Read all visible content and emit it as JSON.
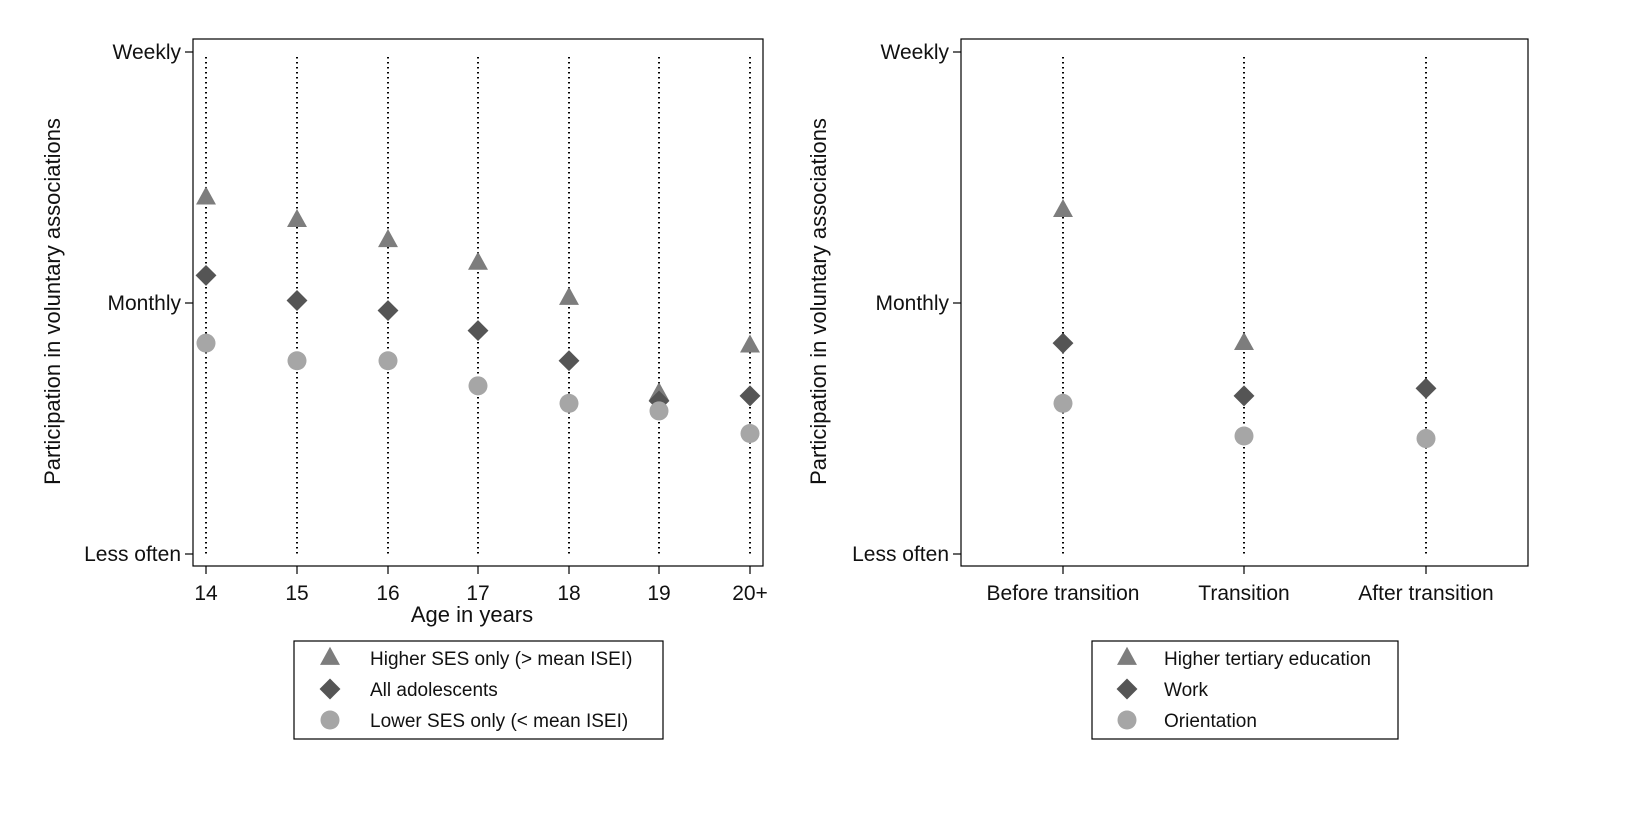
{
  "colors": {
    "higher": "#7d7d7d",
    "all": "#555555",
    "lower": "#a6a6a6",
    "axis": "#000000",
    "guide": "#000000"
  },
  "chart_data": [
    {
      "type": "scatter",
      "ylabel": "Participation in voluntary associations",
      "xlabel": "Age in years",
      "y_tick_labels": [
        "Less often",
        "Monthly",
        "Weekly"
      ],
      "ylim": [
        1,
        3
      ],
      "categories": [
        "14",
        "15",
        "16",
        "17",
        "18",
        "19",
        "20+"
      ],
      "grid": "vertical dotted guides at each category",
      "legend_position": "bottom",
      "series": [
        {
          "name": "Higher SES only (> mean ISEI)",
          "marker": "triangle-icon",
          "color": "#7d7d7d",
          "values": [
            2.42,
            2.33,
            2.25,
            2.16,
            2.02,
            1.64,
            1.83
          ]
        },
        {
          "name": "All adolescents",
          "marker": "diamond-icon",
          "color": "#555555",
          "values": [
            2.11,
            2.01,
            1.97,
            1.89,
            1.77,
            1.61,
            1.63
          ]
        },
        {
          "name": "Lower SES only (< mean ISEI)",
          "marker": "circle-icon",
          "color": "#a6a6a6",
          "values": [
            1.84,
            1.77,
            1.77,
            1.67,
            1.6,
            1.57,
            1.48
          ]
        }
      ]
    },
    {
      "type": "scatter",
      "ylabel": "Participation in voluntary associations",
      "xlabel": "",
      "y_tick_labels": [
        "Less often",
        "Monthly",
        "Weekly"
      ],
      "ylim": [
        1,
        3
      ],
      "categories": [
        "Before transition",
        "Transition",
        "After transition"
      ],
      "grid": "vertical dotted guides at each category",
      "legend_position": "bottom",
      "series": [
        {
          "name": "Higher tertiary education",
          "marker": "triangle-icon",
          "color": "#7d7d7d",
          "values": [
            2.37,
            1.84,
            null
          ]
        },
        {
          "name": "Work",
          "marker": "diamond-icon",
          "color": "#555555",
          "values": [
            1.84,
            1.63,
            1.66
          ]
        },
        {
          "name": "Orientation",
          "marker": "circle-icon",
          "color": "#a6a6a6",
          "values": [
            1.6,
            1.47,
            1.46
          ]
        }
      ]
    }
  ]
}
